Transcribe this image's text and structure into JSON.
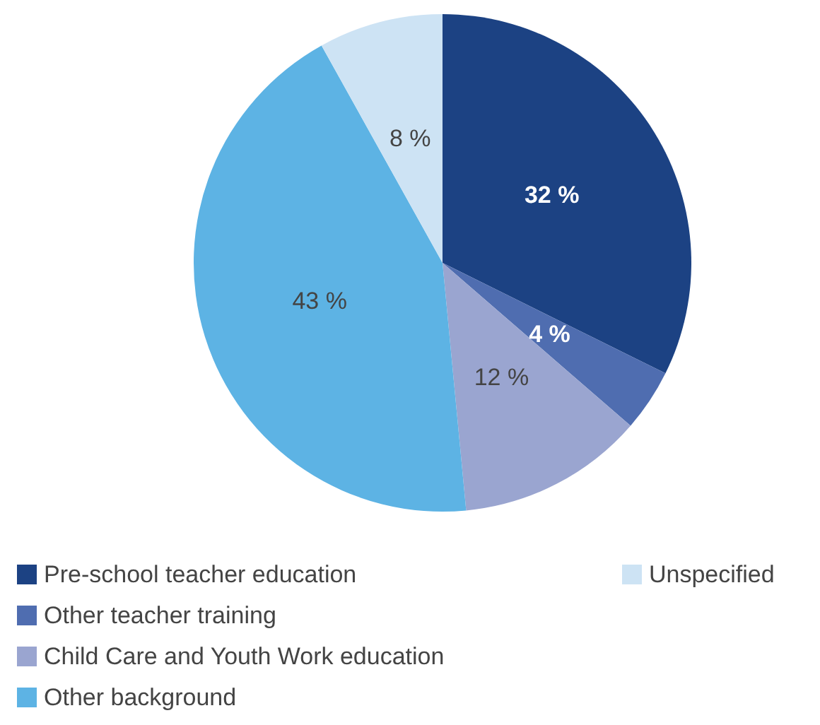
{
  "chart_data": {
    "type": "pie",
    "categories": [
      "Pre-school teacher education",
      "Other teacher training",
      "Child Care and Youth Work education",
      "Other background",
      "Unspecified"
    ],
    "values": [
      32,
      4,
      12,
      43,
      8
    ],
    "colors": [
      "#1c4283",
      "#4f6db0",
      "#9aa5d0",
      "#5db3e4",
      "#cde3f4"
    ],
    "value_labels": [
      "32 %",
      "4 %",
      "12 %",
      "43 %",
      "8 %"
    ],
    "legend": "bottom"
  }
}
